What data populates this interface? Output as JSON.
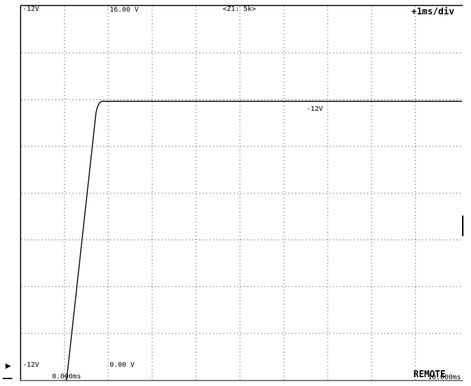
{
  "screen": {
    "top_left_level": "-12V",
    "top_voltage": "16.00 V",
    "zoom": "<Z1: 5k>",
    "timebase": "+1ms/div",
    "trace_level": "-12V",
    "bottom_left_level": "-12V",
    "bottom_voltage": "0.00 V",
    "start_time": "0.000ms",
    "status": "REMOTE",
    "end_time": "10.000ms"
  }
}
